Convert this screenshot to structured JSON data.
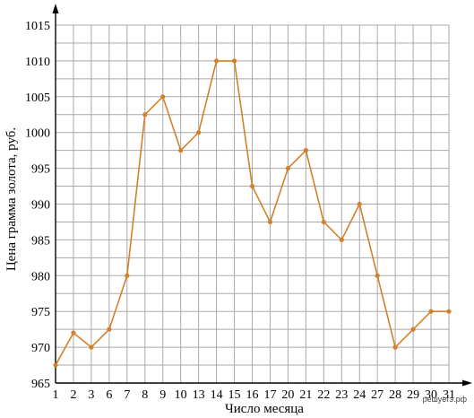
{
  "chart_data": {
    "type": "line",
    "xlabel": "Число месяца",
    "ylabel": "Цена грамма золота, руб.",
    "categories": [
      "1",
      "2",
      "3",
      "6",
      "7",
      "8",
      "9",
      "10",
      "13",
      "14",
      "15",
      "16",
      "17",
      "20",
      "21",
      "22",
      "23",
      "24",
      "27",
      "28",
      "29",
      "30",
      "31"
    ],
    "values": [
      967.5,
      972,
      970,
      972.5,
      980,
      1002.5,
      1005,
      997.5,
      1000,
      1010,
      1010,
      992.5,
      987.5,
      995,
      997.5,
      987.5,
      985,
      990,
      980,
      970,
      972.5,
      975,
      975
    ],
    "ylim": [
      965,
      1015
    ],
    "yticks": [
      965,
      970,
      975,
      980,
      985,
      990,
      995,
      1000,
      1005,
      1010,
      1015
    ],
    "y_minor_step": 2.5,
    "grid": true,
    "colors": {
      "line": "#d4802a",
      "grid": "#a9a9a9",
      "axis": "#000000"
    }
  },
  "watermark": "решуегэ.рф"
}
